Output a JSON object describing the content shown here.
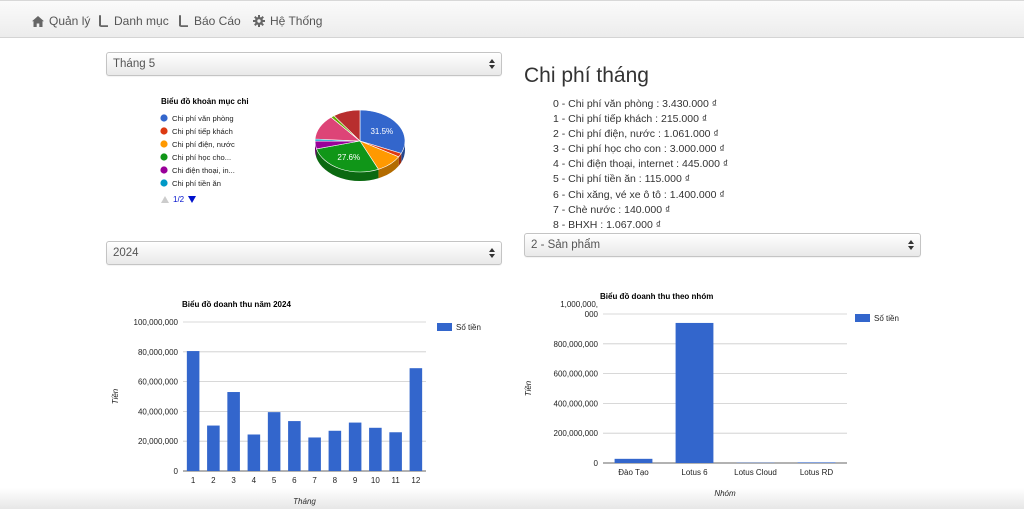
{
  "nav": {
    "items": [
      {
        "label": "Quản lý",
        "icon": "home-icon"
      },
      {
        "label": "Danh mục",
        "icon": "book-icon"
      },
      {
        "label": "Báo Cáo",
        "icon": "book-icon"
      },
      {
        "label": "Hệ Thống",
        "icon": "gear-icon"
      }
    ]
  },
  "selects": {
    "month": "Tháng 5",
    "year": "2024",
    "group": "2 - Sản phẩm"
  },
  "pie": {
    "title": "Biểu đồ khoản mục chi",
    "legend": [
      {
        "label": "Chi phí văn phòng",
        "color": "#3366cc"
      },
      {
        "label": "Chi phí tiếp khách",
        "color": "#dc3912"
      },
      {
        "label": "Chi phí điện, nước",
        "color": "#ff9900"
      },
      {
        "label": "Chi phí học cho...",
        "color": "#109618"
      },
      {
        "label": "Chi điện thoại, in...",
        "color": "#990099"
      },
      {
        "label": "Chi phí tiền ăn",
        "color": "#0099c6"
      }
    ],
    "pager": "1/2",
    "slices": [
      {
        "label": "Chi phí văn phòng",
        "value": 3430000,
        "color": "#3366cc",
        "shown_pct": "31.5%"
      },
      {
        "label": "Chi phí tiếp khách",
        "value": 215000,
        "color": "#dc3912",
        "shown_pct": ""
      },
      {
        "label": "Chi phí điện, nước",
        "value": 1061000,
        "color": "#ff9900",
        "shown_pct": ""
      },
      {
        "label": "Chi phí học cho con",
        "value": 3000000,
        "color": "#109618",
        "shown_pct": "27.6%"
      },
      {
        "label": "Chi điện thoại, internet",
        "value": 445000,
        "color": "#990099",
        "shown_pct": ""
      },
      {
        "label": "Chi phí tiền ăn",
        "value": 115000,
        "color": "#0099c6",
        "shown_pct": ""
      },
      {
        "label": "Chi xăng, vé xe ô tô",
        "value": 1400000,
        "color": "#dd4477",
        "shown_pct": ""
      },
      {
        "label": "Chè nước",
        "value": 140000,
        "color": "#66aa00",
        "shown_pct": ""
      },
      {
        "label": "BHXH",
        "value": 1067000,
        "color": "#b82e2e",
        "shown_pct": ""
      }
    ]
  },
  "costs": {
    "title": "Chi phí tháng",
    "items": [
      "0 - Chi phí văn phòng : 3.430.000 ₫",
      "1 - Chi phí tiếp khách : 215.000 ₫",
      "2 - Chi phí điện, nước : 1.061.000 ₫",
      "3 - Chi phí học cho con : 3.000.000 ₫",
      "4 - Chi điện thoại, internet : 445.000 ₫",
      "5 - Chi phí tiền ăn : 115.000 ₫",
      "6 - Chi xăng, vé xe ô tô : 1.400.000 ₫",
      "7 - Chè nước : 140.000 ₫",
      "8 - BHXH : 1.067.000 ₫"
    ]
  },
  "chart_data": [
    {
      "type": "pie",
      "title": "Biểu đồ khoản mục chi",
      "categories": [
        "Chi phí văn phòng",
        "Chi phí tiếp khách",
        "Chi phí điện, nước",
        "Chi phí học cho con",
        "Chi điện thoại, internet",
        "Chi phí tiền ăn",
        "Chi xăng, vé xe ô tô",
        "Chè nước",
        "BHXH"
      ],
      "values": [
        3430000,
        215000,
        1061000,
        3000000,
        445000,
        115000,
        1400000,
        140000,
        1067000
      ],
      "legend": "right"
    },
    {
      "type": "bar",
      "title": "Biểu đồ doanh thu năm 2024",
      "xlabel": "Tháng",
      "ylabel": "Tiền",
      "categories": [
        "1",
        "2",
        "3",
        "4",
        "5",
        "6",
        "7",
        "8",
        "9",
        "10",
        "11",
        "12"
      ],
      "series": [
        {
          "name": "Số tiền",
          "values": [
            80500000,
            30500000,
            53000000,
            24500000,
            39500000,
            33500000,
            22500000,
            27000000,
            32500000,
            29000000,
            26000000,
            69000000
          ]
        }
      ],
      "ylim": [
        0,
        100000000
      ],
      "yticks": [
        "0",
        "20,000,000",
        "40,000,000",
        "60,000,000",
        "80,000,000",
        "100,000,000"
      ],
      "grid": true,
      "legend": "right",
      "color": "#3366cc"
    },
    {
      "type": "bar",
      "title": "Biểu đồ doanh thu theo nhóm",
      "xlabel": "Nhóm",
      "ylabel": "Tiền",
      "categories": [
        "Đào Tạo",
        "Lotus 6",
        "Lotus Cloud",
        "Lotus RD"
      ],
      "series": [
        {
          "name": "Số tiền",
          "values": [
            28000000,
            940000000,
            2000000,
            4000000
          ]
        }
      ],
      "ylim": [
        0,
        1000000000
      ],
      "yticks": [
        "0",
        "200,000,000",
        "400,000,000",
        "600,000,000",
        "800,000,000",
        "1,000,000,\n000"
      ],
      "grid": true,
      "legend": "right",
      "color": "#3366cc"
    }
  ]
}
